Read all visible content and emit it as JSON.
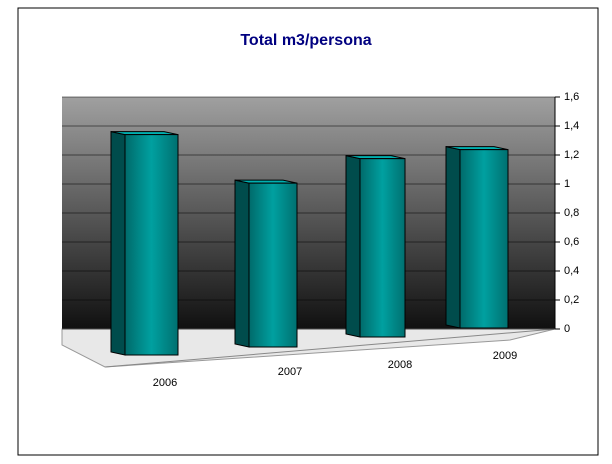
{
  "chart_data": {
    "type": "bar3d",
    "title": "Total m3/persona",
    "categories": [
      "2006",
      "2007",
      "2008",
      "2009"
    ],
    "values": [
      1.52,
      1.13,
      1.23,
      1.23
    ],
    "color": "#008080",
    "ylim": [
      0,
      1.6
    ],
    "yticks": [
      0,
      {
        "value": 0.2,
        "label": "0,2"
      },
      {
        "value": 0.4,
        "label": "0,4"
      },
      {
        "value": 0.6,
        "label": "0,6"
      },
      {
        "value": 0.8,
        "label": "0,8"
      },
      1,
      {
        "value": 1.2,
        "label": "1,2"
      },
      {
        "value": 1.4,
        "label": "1,4"
      },
      {
        "value": 1.6,
        "label": "1,6"
      }
    ],
    "grid": true
  }
}
